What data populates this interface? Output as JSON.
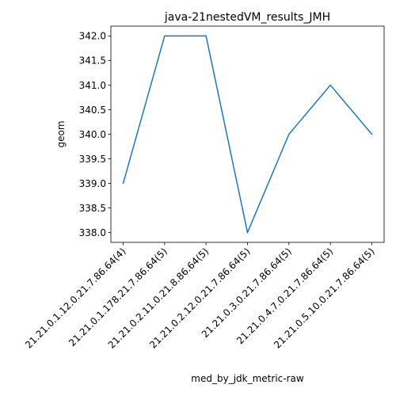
{
  "chart_data": {
    "type": "line",
    "title": "java-21nestedVM_results_JMH",
    "xlabel": "med_by_jdk_metric-raw",
    "ylabel": "geom",
    "categories": [
      "21.21.0.1.12.0.21.7.86.64(4)",
      "21.21.0.1.178.21.7.86.64(5)",
      "21.21.0.2.11.0.21.8.86.64(5)",
      "21.21.0.2.12.0.21.7.86.64(5)",
      "21.21.0.3.0.21.7.86.64(5)",
      "21.21.0.4.7.0.21.7.86.64(5)",
      "21.21.0.5.10.0.21.7.86.64(5)"
    ],
    "values": [
      339.0,
      342.0,
      342.0,
      338.0,
      340.0,
      341.0,
      340.0
    ],
    "ylim": [
      337.8,
      342.2
    ],
    "yticks": [
      "338.0",
      "338.5",
      "339.0",
      "339.5",
      "340.0",
      "340.5",
      "341.0",
      "341.5",
      "342.0"
    ],
    "grid": false,
    "line_color": "#1f77b4"
  }
}
